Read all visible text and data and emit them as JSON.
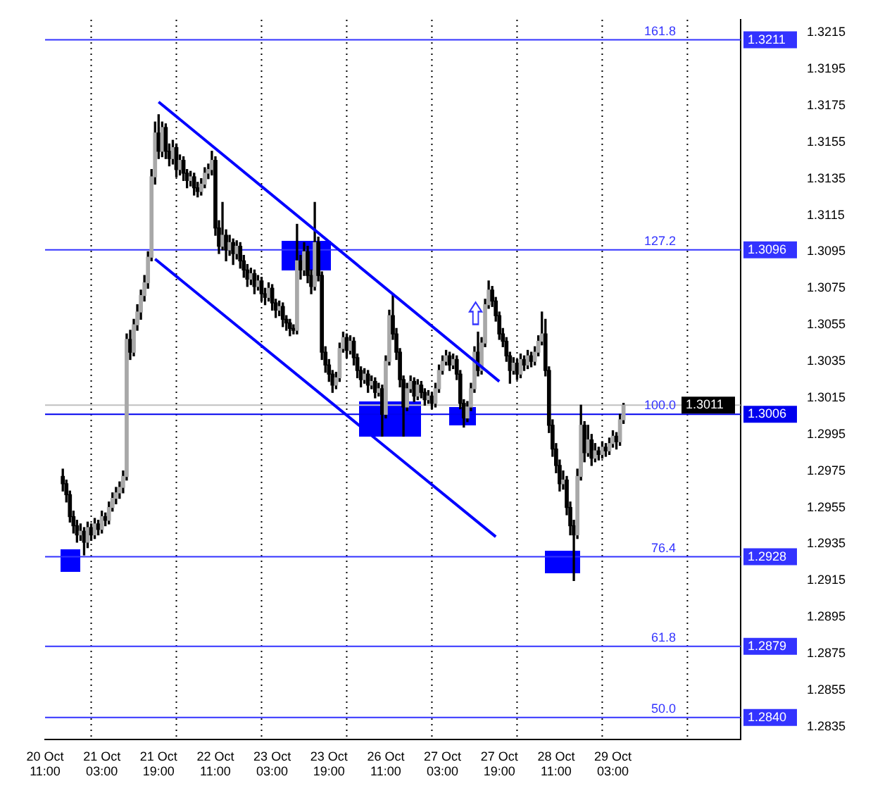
{
  "chart_data": {
    "type": "candlestick",
    "categories": [
      "20 Oct 11:00",
      null,
      null,
      null,
      null,
      null,
      null,
      null,
      null,
      null,
      null,
      null,
      null,
      null,
      null,
      null,
      "21 Oct 03:00",
      null,
      null,
      null,
      null,
      null,
      null,
      null,
      null,
      null,
      null,
      null,
      null,
      null,
      null,
      null,
      "21 Oct 19:00",
      null,
      null,
      null,
      null,
      null,
      null,
      null,
      null,
      null,
      null,
      null,
      null,
      null,
      null,
      null,
      "22 Oct 11:00",
      null,
      null,
      null,
      null,
      null,
      null,
      null,
      null,
      null,
      null,
      null,
      null,
      null,
      null,
      null,
      "23 Oct 03:00",
      null,
      null,
      null,
      null,
      null,
      null,
      null,
      null,
      null,
      null,
      null,
      null,
      null,
      null,
      null,
      "23 Oct 19:00",
      null,
      null,
      null,
      null,
      null,
      null,
      null,
      null,
      null,
      null,
      null,
      null,
      null,
      null,
      null,
      "26 Oct 11:00",
      null,
      null,
      null,
      null,
      null,
      null,
      null,
      null,
      null,
      null,
      null,
      null,
      null,
      null,
      null,
      "27 Oct 03:00",
      null,
      null,
      null,
      null,
      null,
      null,
      null,
      null,
      null,
      null,
      null,
      null,
      null,
      null,
      null,
      "27 Oct 19:00",
      null,
      null,
      null,
      null,
      null,
      null,
      null,
      null,
      null,
      null,
      null,
      null,
      null,
      null,
      null,
      "28 Oct 11:00",
      null,
      null,
      null,
      null,
      null,
      null,
      null,
      null,
      null,
      null,
      null,
      null,
      null,
      null,
      null,
      "29 Oct 03:00",
      null,
      null,
      null,
      null,
      null,
      null,
      null,
      null,
      null,
      null,
      null,
      null,
      null,
      null,
      null,
      null,
      null,
      null,
      null,
      null,
      null,
      null,
      null,
      null,
      null,
      null,
      null,
      null,
      null,
      null,
      null,
      null,
      null,
      null,
      null,
      null
    ],
    "ohlc": [
      null,
      null,
      null,
      null,
      null,
      [
        1.2972,
        1.2976,
        1.2964,
        1.2968
      ],
      [
        1.2968,
        1.297,
        1.2958,
        1.2962
      ],
      [
        1.2962,
        1.2964,
        1.2947,
        1.295
      ],
      [
        1.295,
        1.2953,
        1.2941,
        1.2945
      ],
      [
        1.2945,
        1.2948,
        1.2936,
        1.294
      ],
      [
        1.294,
        1.2946,
        1.2937,
        1.2942
      ],
      [
        1.2942,
        1.2944,
        1.2929,
        1.2936
      ],
      [
        1.2936,
        1.2947,
        1.2933,
        1.2944
      ],
      [
        1.2944,
        1.2946,
        1.2937,
        1.294
      ],
      [
        1.294,
        1.2949,
        1.2938,
        1.2946
      ],
      [
        1.2946,
        1.2948,
        1.294,
        1.2943
      ],
      [
        1.2943,
        1.2953,
        1.2941,
        1.295
      ],
      [
        1.295,
        1.2952,
        1.2945,
        1.2948
      ],
      [
        1.2948,
        1.2958,
        1.2946,
        1.2955
      ],
      [
        1.2955,
        1.2963,
        1.2953,
        1.296
      ],
      [
        1.296,
        1.2966,
        1.2957,
        1.2963
      ],
      [
        1.2963,
        1.2969,
        1.296,
        1.2966
      ],
      [
        1.2966,
        1.2975,
        1.2963,
        1.2972
      ],
      [
        1.2972,
        1.305,
        1.297,
        1.3047
      ],
      [
        1.3047,
        1.3052,
        1.3036,
        1.304
      ],
      [
        1.304,
        1.3058,
        1.3038,
        1.3055
      ],
      [
        1.3055,
        1.3066,
        1.3052,
        1.3062
      ],
      [
        1.3062,
        1.3074,
        1.3058,
        1.3071
      ],
      [
        1.3071,
        1.3082,
        1.3068,
        1.3078
      ],
      [
        1.3078,
        1.3095,
        1.3075,
        1.3092
      ],
      [
        1.3092,
        1.314,
        1.309,
        1.3136
      ],
      [
        1.3136,
        1.3166,
        1.3132,
        1.316
      ],
      [
        1.316,
        1.317,
        1.3146,
        1.315
      ],
      [
        1.315,
        1.3166,
        1.3147,
        1.3163
      ],
      [
        1.3163,
        1.3165,
        1.3146,
        1.315
      ],
      [
        1.315,
        1.3154,
        1.3142,
        1.3146
      ],
      [
        1.3146,
        1.3156,
        1.3143,
        1.3152
      ],
      [
        1.3152,
        1.3154,
        1.3136,
        1.314
      ],
      [
        1.314,
        1.3148,
        1.3137,
        1.3145
      ],
      [
        1.3145,
        1.3147,
        1.3134,
        1.3138
      ],
      [
        1.3138,
        1.314,
        1.313,
        1.3134
      ],
      [
        1.3134,
        1.3139,
        1.3131,
        1.3136
      ],
      [
        1.3136,
        1.3138,
        1.3126,
        1.313
      ],
      [
        1.313,
        1.3133,
        1.3125,
        1.3128
      ],
      [
        1.3128,
        1.3135,
        1.3126,
        1.3132
      ],
      [
        1.3132,
        1.3141,
        1.313,
        1.3138
      ],
      [
        1.3138,
        1.3143,
        1.3135,
        1.314
      ],
      [
        1.314,
        1.315,
        1.3137,
        1.3145
      ],
      [
        1.3145,
        1.3147,
        1.3104,
        1.3108
      ],
      [
        1.3108,
        1.3112,
        1.3094,
        1.3098
      ],
      [
        1.3098,
        1.3122,
        1.3096,
        1.3104
      ],
      [
        1.3104,
        1.3107,
        1.309,
        1.3096
      ],
      [
        1.3096,
        1.3104,
        1.3093,
        1.31
      ],
      [
        1.31,
        1.3102,
        1.3088,
        1.3094
      ],
      [
        1.3094,
        1.3101,
        1.3091,
        1.3098
      ],
      [
        1.3098,
        1.31,
        1.3086,
        1.309
      ],
      [
        1.309,
        1.3093,
        1.3081,
        1.3085
      ],
      [
        1.3085,
        1.3088,
        1.3076,
        1.308
      ],
      [
        1.308,
        1.3086,
        1.3077,
        1.3083
      ],
      [
        1.3083,
        1.3085,
        1.3072,
        1.3076
      ],
      [
        1.3076,
        1.3082,
        1.3074,
        1.3079
      ],
      [
        1.3079,
        1.3081,
        1.3068,
        1.3072
      ],
      [
        1.3072,
        1.3075,
        1.3066,
        1.307
      ],
      [
        1.307,
        1.3078,
        1.3068,
        1.3075
      ],
      [
        1.3075,
        1.3077,
        1.3063,
        1.3067
      ],
      [
        1.3067,
        1.3069,
        1.3059,
        1.3063
      ],
      [
        1.3063,
        1.3068,
        1.306,
        1.3065
      ],
      [
        1.3065,
        1.3067,
        1.3054,
        1.3058
      ],
      [
        1.3058,
        1.306,
        1.3052,
        1.3056
      ],
      [
        1.3056,
        1.3058,
        1.3049,
        1.3053
      ],
      [
        1.3053,
        1.3055,
        1.305,
        1.3052
      ],
      [
        1.3052,
        1.311,
        1.305,
        1.309
      ],
      [
        1.309,
        1.3093,
        1.308,
        1.3085
      ],
      [
        1.3085,
        1.31,
        1.3082,
        1.3095
      ],
      [
        1.3095,
        1.3098,
        1.3078,
        1.3082
      ],
      [
        1.3082,
        1.3085,
        1.3072,
        1.3076
      ],
      [
        1.3076,
        1.3122,
        1.3074,
        1.31
      ],
      [
        1.31,
        1.3103,
        1.3079,
        1.3082
      ],
      [
        1.3082,
        1.3084,
        1.3036,
        1.304
      ],
      [
        1.304,
        1.3043,
        1.3029,
        1.3033
      ],
      [
        1.3033,
        1.3036,
        1.3024,
        1.3028
      ],
      [
        1.3028,
        1.303,
        1.3018,
        1.3022
      ],
      [
        1.3022,
        1.3029,
        1.302,
        1.3026
      ],
      [
        1.3026,
        1.3045,
        1.3024,
        1.3042
      ],
      [
        1.3042,
        1.3051,
        1.304,
        1.3048
      ],
      [
        1.3048,
        1.305,
        1.3037,
        1.3041
      ],
      [
        1.3041,
        1.3049,
        1.3039,
        1.3046
      ],
      [
        1.3046,
        1.3048,
        1.3033,
        1.3037
      ],
      [
        1.3037,
        1.3039,
        1.3026,
        1.303
      ],
      [
        1.303,
        1.3032,
        1.3021,
        1.3025
      ],
      [
        1.3025,
        1.3031,
        1.3023,
        1.3028
      ],
      [
        1.3028,
        1.303,
        1.3018,
        1.3022
      ],
      [
        1.3022,
        1.3027,
        1.302,
        1.3024
      ],
      [
        1.3024,
        1.3026,
        1.3015,
        1.3018
      ],
      [
        1.3018,
        1.3023,
        1.3016,
        1.302
      ],
      [
        1.302,
        1.3022,
        1.2994,
        1.3006
      ],
      [
        1.3006,
        1.3038,
        1.3004,
        1.3035
      ],
      [
        1.3035,
        1.3063,
        1.3033,
        1.306
      ],
      [
        1.306,
        1.3071,
        1.3047,
        1.305
      ],
      [
        1.305,
        1.3053,
        1.3036,
        1.304
      ],
      [
        1.304,
        1.3042,
        1.3021,
        1.3025
      ],
      [
        1.3025,
        1.3027,
        1.2994,
        1.301
      ],
      [
        1.301,
        1.3023,
        1.3008,
        1.302
      ],
      [
        1.302,
        1.3027,
        1.3018,
        1.3024
      ],
      [
        1.3024,
        1.3026,
        1.3013,
        1.3016
      ],
      [
        1.3016,
        1.3025,
        1.3014,
        1.3022
      ],
      [
        1.3022,
        1.3024,
        1.3015,
        1.3018
      ],
      [
        1.3018,
        1.302,
        1.3011,
        1.3014
      ],
      [
        1.3014,
        1.3019,
        1.3012,
        1.3016
      ],
      [
        1.3016,
        1.3018,
        1.3009,
        1.3012
      ],
      [
        1.3012,
        1.3023,
        1.301,
        1.302
      ],
      [
        1.302,
        1.3033,
        1.3018,
        1.303
      ],
      [
        1.303,
        1.3038,
        1.3028,
        1.3035
      ],
      [
        1.3035,
        1.3041,
        1.3033,
        1.3038
      ],
      [
        1.3038,
        1.304,
        1.303,
        1.3033
      ],
      [
        1.3033,
        1.3039,
        1.3031,
        1.3036
      ],
      [
        1.3036,
        1.3038,
        1.3025,
        1.3028
      ],
      [
        1.3028,
        1.303,
        1.3009,
        1.3012
      ],
      [
        1.3012,
        1.3014,
        1.2999,
        1.3004
      ],
      [
        1.3004,
        1.3013,
        1.3002,
        1.301
      ],
      [
        1.301,
        1.3023,
        1.3008,
        1.302
      ],
      [
        1.302,
        1.3043,
        1.3018,
        1.304
      ],
      [
        1.304,
        1.3051,
        1.3027,
        1.303
      ],
      [
        1.303,
        1.3048,
        1.3028,
        1.3045
      ],
      [
        1.3045,
        1.3069,
        1.3043,
        1.3066
      ],
      [
        1.3066,
        1.3079,
        1.3064,
        1.3074
      ],
      [
        1.3074,
        1.3076,
        1.3065,
        1.3068
      ],
      [
        1.3068,
        1.307,
        1.3057,
        1.306
      ],
      [
        1.306,
        1.3062,
        1.3047,
        1.305
      ],
      [
        1.305,
        1.3053,
        1.3043,
        1.3046
      ],
      [
        1.3046,
        1.3048,
        1.3035,
        1.3038
      ],
      [
        1.3038,
        1.304,
        1.3023,
        1.303
      ],
      [
        1.303,
        1.3037,
        1.3028,
        1.3034
      ],
      [
        1.3034,
        1.3036,
        1.3025,
        1.3028
      ],
      [
        1.3028,
        1.3039,
        1.3026,
        1.3036
      ],
      [
        1.3036,
        1.3038,
        1.303,
        1.3033
      ],
      [
        1.3033,
        1.3041,
        1.3031,
        1.3038
      ],
      [
        1.3038,
        1.304,
        1.3032,
        1.3035
      ],
      [
        1.3035,
        1.3043,
        1.3033,
        1.304
      ],
      [
        1.304,
        1.3049,
        1.3038,
        1.3046
      ],
      [
        1.3046,
        1.3062,
        1.3044,
        1.305
      ],
      [
        1.305,
        1.3058,
        1.3027,
        1.303
      ],
      [
        1.303,
        1.3032,
        1.2996,
        1.3
      ],
      [
        1.3,
        1.3003,
        1.2983,
        1.2987
      ],
      [
        1.2987,
        1.299,
        1.2974,
        1.2978
      ],
      [
        1.2978,
        1.2981,
        1.2964,
        1.2968
      ],
      [
        1.2968,
        1.2975,
        1.2965,
        1.297
      ],
      [
        1.297,
        1.2972,
        1.2951,
        1.2955
      ],
      [
        1.2955,
        1.2958,
        1.294,
        1.2945
      ],
      [
        1.2945,
        1.2948,
        1.2915,
        1.294
      ],
      [
        1.294,
        1.2976,
        1.2938,
        1.2972
      ],
      [
        1.2972,
        1.3011,
        1.297,
        1.3
      ],
      [
        1.3,
        1.3002,
        1.298,
        1.2985
      ],
      [
        1.2985,
        1.3,
        1.2983,
        1.2992
      ],
      [
        1.2992,
        1.2995,
        1.2978,
        1.2982
      ],
      [
        1.2982,
        1.299,
        1.298,
        1.2986
      ],
      [
        1.2986,
        1.2988,
        1.2981,
        1.2984
      ],
      [
        1.2984,
        1.2991,
        1.2982,
        1.2988
      ],
      [
        1.2988,
        1.299,
        1.2983,
        1.2986
      ],
      [
        1.2986,
        1.2993,
        1.2984,
        1.299
      ],
      [
        1.299,
        1.2997,
        1.2988,
        1.2994
      ],
      [
        1.2994,
        1.2996,
        1.2987,
        1.2991
      ],
      [
        1.2991,
        1.3006,
        1.2989,
        1.3003
      ],
      [
        1.3003,
        1.3012,
        1.3001,
        1.3011
      ],
      null,
      null,
      null,
      null,
      null,
      null,
      null,
      null,
      null,
      null,
      null,
      null,
      null,
      null,
      null,
      null,
      null,
      null,
      null,
      null,
      null,
      null,
      null,
      null,
      null,
      null,
      null,
      null,
      null,
      null,
      null,
      null,
      null
    ],
    "ylim": [
      1.2828,
      1.3222
    ],
    "yticks": [
      1.2835,
      1.2855,
      1.2875,
      1.2895,
      1.2915,
      1.2935,
      1.2955,
      1.2975,
      1.2995,
      1.3015,
      1.3035,
      1.3055,
      1.3075,
      1.3095,
      1.3115,
      1.3135,
      1.3155,
      1.3175,
      1.3195,
      1.3215
    ],
    "series": [
      {
        "type": "line",
        "color": "#0000ff",
        "values": [
          null,
          null,
          null,
          null,
          null,
          null,
          null,
          null,
          null,
          null,
          null,
          null,
          null,
          null,
          null,
          null,
          null,
          null,
          null,
          null,
          null,
          null,
          null,
          null,
          null,
          null,
          null,
          null,
          null,
          null,
          null,
          null,
          1.3177,
          null,
          null,
          null,
          null,
          null,
          null,
          null,
          null,
          null,
          null,
          null,
          null,
          null,
          null,
          null,
          null,
          null,
          null,
          null,
          null,
          null,
          null,
          null,
          null,
          null,
          null,
          null,
          null,
          null,
          null,
          null,
          null,
          null,
          null,
          null,
          null,
          null,
          null,
          null,
          null,
          null,
          null,
          null,
          null,
          null,
          null,
          null,
          null,
          null,
          null,
          null,
          null,
          null,
          null,
          null,
          null,
          null,
          null,
          null,
          null,
          null,
          null,
          null,
          null,
          null,
          null,
          null,
          null,
          null,
          null,
          null,
          null,
          null,
          null,
          null,
          null,
          null,
          null,
          null,
          null,
          null,
          null,
          null,
          null,
          null,
          null,
          null,
          null,
          null,
          null,
          null,
          null,
          null,
          null,
          null,
          1.3024,
          null,
          null,
          null,
          null,
          null,
          null,
          null,
          null,
          null,
          null,
          null,
          null,
          null,
          null,
          null,
          null,
          null,
          null,
          null,
          null,
          null,
          null,
          null,
          null,
          null,
          null,
          null,
          null,
          null,
          null,
          null,
          null,
          null,
          null,
          null,
          null,
          null,
          null,
          null,
          null,
          null,
          null,
          null,
          null,
          null,
          null,
          null,
          null,
          null,
          null,
          null,
          null,
          null,
          null,
          null,
          null,
          null,
          null,
          null,
          null,
          null,
          null,
          null,
          null,
          null,
          null,
          null,
          null
        ]
      },
      {
        "type": "line",
        "color": "#0000ff",
        "values": [
          null,
          null,
          null,
          null,
          null,
          null,
          null,
          null,
          null,
          null,
          null,
          null,
          null,
          null,
          null,
          null,
          null,
          null,
          null,
          null,
          null,
          null,
          null,
          null,
          null,
          null,
          null,
          null,
          null,
          null,
          null,
          1.3091,
          null,
          null,
          null,
          null,
          null,
          null,
          null,
          null,
          null,
          null,
          null,
          null,
          null,
          null,
          null,
          null,
          null,
          null,
          null,
          null,
          null,
          null,
          null,
          null,
          null,
          null,
          null,
          null,
          null,
          null,
          null,
          null,
          null,
          null,
          null,
          null,
          null,
          null,
          null,
          null,
          null,
          null,
          null,
          null,
          null,
          null,
          null,
          null,
          null,
          null,
          null,
          null,
          null,
          null,
          null,
          null,
          null,
          null,
          null,
          null,
          null,
          null,
          null,
          null,
          null,
          null,
          null,
          null,
          null,
          null,
          null,
          null,
          null,
          null,
          null,
          null,
          null,
          null,
          null,
          null,
          null,
          null,
          null,
          null,
          null,
          null,
          null,
          null,
          null,
          null,
          null,
          null,
          null,
          null,
          null,
          1.2939,
          null,
          null,
          null,
          null,
          null,
          null,
          null,
          null,
          null,
          null,
          null,
          null,
          null,
          null,
          null,
          null,
          null,
          null,
          null,
          null,
          null,
          null,
          null,
          null,
          null,
          null,
          null,
          null,
          null,
          null,
          null,
          null,
          null,
          null,
          null,
          null,
          null,
          null,
          null,
          null,
          null,
          null,
          null,
          null,
          null,
          null,
          null,
          null,
          null,
          null,
          null,
          null,
          null,
          null,
          null,
          null,
          null,
          null,
          null,
          null,
          null,
          null,
          null,
          null,
          null,
          null,
          null,
          null,
          null
        ]
      }
    ],
    "ref_lines": [
      {
        "axis": "y",
        "value": 1.3211,
        "label": "1.3211",
        "color": "#3333ff"
      },
      {
        "axis": "y",
        "value": 1.3096,
        "label": "1.3096",
        "color": "#3333ff"
      },
      {
        "axis": "y",
        "value": 1.3006,
        "label": "1.3006",
        "color": "#0000ee"
      },
      {
        "axis": "y",
        "value": 1.3011,
        "label": "1.3011",
        "color": "#c0c0c0"
      },
      {
        "axis": "y",
        "value": 1.2928,
        "label": "1.2928",
        "color": "#3333ff"
      },
      {
        "axis": "y",
        "value": 1.2879,
        "label": "1.2879",
        "color": "#3333ff"
      },
      {
        "axis": "y",
        "value": 1.284,
        "label": "1.2840",
        "color": "#3333ff"
      }
    ],
    "annotations": [
      {
        "text": "161.8",
        "y": 1.3211
      },
      {
        "text": "127.2",
        "y": 1.3096
      },
      {
        "text": "100.0",
        "y": 1.3006
      },
      {
        "text": "76.4",
        "y": 1.2928
      },
      {
        "text": "61.8",
        "y": 1.2879
      },
      {
        "text": "50.0",
        "y": 1.284
      }
    ]
  }
}
